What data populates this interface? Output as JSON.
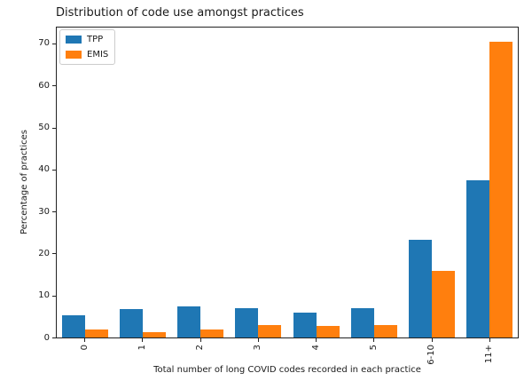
{
  "chart_data": {
    "type": "bar",
    "title": "Distribution of code use amongst practices",
    "xlabel": "Total number of long COVID codes recorded in each practice",
    "ylabel": "Percentage of practices",
    "categories": [
      "0",
      "1",
      "2",
      "3",
      "4",
      "5",
      "6-10",
      "11+"
    ],
    "series": [
      {
        "name": "TPP",
        "color": "#1f77b4",
        "values": [
          5.3,
          6.8,
          7.5,
          6.9,
          6.0,
          7.0,
          23.2,
          37.5
        ]
      },
      {
        "name": "EMIS",
        "color": "#ff7f0e",
        "values": [
          2.0,
          1.3,
          2.0,
          2.9,
          2.8,
          3.0,
          15.9,
          70.5
        ]
      }
    ],
    "ylim": [
      0,
      74
    ],
    "yticks": [
      0,
      10,
      20,
      30,
      40,
      50,
      60,
      70
    ],
    "grid": false,
    "legend_position": "upper left",
    "bar_orientation": "vertical",
    "xtick_label_rotation_deg": 90
  }
}
